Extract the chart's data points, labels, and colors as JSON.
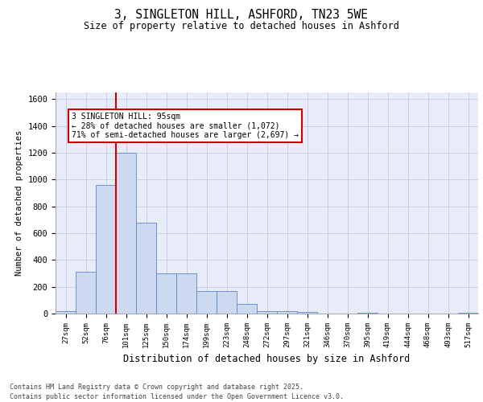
{
  "title1": "3, SINGLETON HILL, ASHFORD, TN23 5WE",
  "title2": "Size of property relative to detached houses in Ashford",
  "xlabel": "Distribution of detached houses by size in Ashford",
  "ylabel": "Number of detached properties",
  "categories": [
    "27sqm",
    "52sqm",
    "76sqm",
    "101sqm",
    "125sqm",
    "150sqm",
    "174sqm",
    "199sqm",
    "223sqm",
    "248sqm",
    "272sqm",
    "297sqm",
    "321sqm",
    "346sqm",
    "370sqm",
    "395sqm",
    "419sqm",
    "444sqm",
    "468sqm",
    "493sqm",
    "517sqm"
  ],
  "values": [
    20,
    310,
    960,
    1200,
    680,
    300,
    300,
    170,
    170,
    70,
    20,
    20,
    10,
    0,
    0,
    5,
    0,
    0,
    0,
    0,
    5
  ],
  "bar_color": "#ccd9f0",
  "bar_edge_color": "#5b87c5",
  "grid_color": "#c8cfe8",
  "vline_color": "#cc0000",
  "annotation_text": "3 SINGLETON HILL: 95sqm\n← 28% of detached houses are smaller (1,072)\n71% of semi-detached houses are larger (2,697) →",
  "annotation_box_color": "#ffffff",
  "annotation_box_edge": "#cc0000",
  "footnote1": "Contains HM Land Registry data © Crown copyright and database right 2025.",
  "footnote2": "Contains public sector information licensed under the Open Government Licence v3.0.",
  "ylim": [
    0,
    1650
  ],
  "yticks": [
    0,
    200,
    400,
    600,
    800,
    1000,
    1200,
    1400,
    1600
  ],
  "bg_color": "#e8ecf8",
  "fig_bg_color": "#ffffff"
}
